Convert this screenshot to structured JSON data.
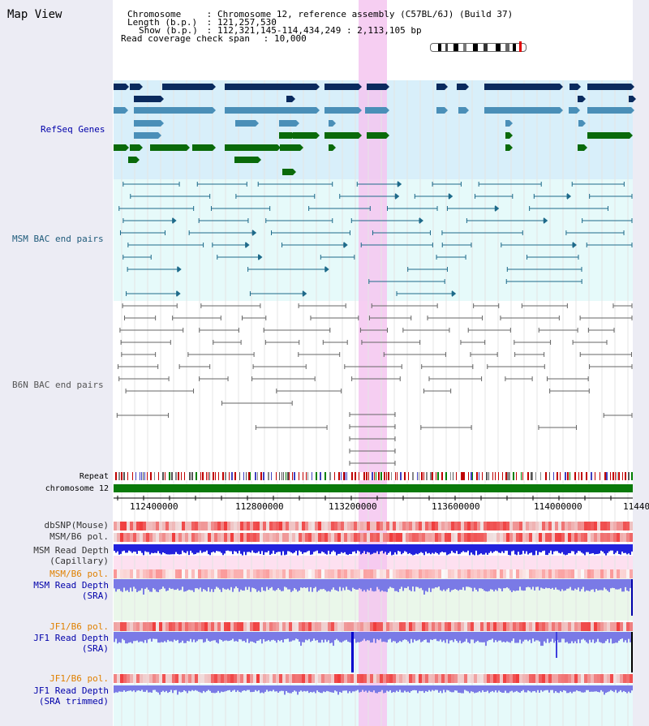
{
  "header": {
    "view_title": "Map View",
    "chromosome_label": "Chromosome",
    "chromosome_value": "Chromosome 12, reference assembly (C57BL/6J) (Build 37)",
    "length_label": "Length (b.p.)",
    "length_value": "121,257,530",
    "show_label": "Show (b.p.)",
    "show_value": "112,321,145-114,434,249 : 2,113,105 bp",
    "coverage_label": "Read coverage check span",
    "coverage_value": "10,000",
    "sep": " : "
  },
  "tracks": {
    "refseq": {
      "label": "RefSeq Genes",
      "color": "#0000aa"
    },
    "msm_bac": {
      "label": "MSM BAC end pairs",
      "color": "#1e5a7a"
    },
    "b6n_bac": {
      "label": "B6N BAC end pairs",
      "color": "#555555"
    },
    "repeat": {
      "label": "Repeat"
    },
    "chromosome": {
      "label": "chromosome 12"
    },
    "dbsnp": {
      "label": "dbSNP(Mouse)"
    },
    "msm_b6_pol_1": {
      "label": "MSM/B6 pol."
    },
    "msm_depth_cap": {
      "label": "MSM Read Depth",
      "label2": "(Capillary)"
    },
    "msm_b6_pol_2": {
      "label": "MSM/B6 pol.",
      "color": "#e08000"
    },
    "msm_depth_sra": {
      "label": "MSM Read Depth",
      "label2": "(SRA)",
      "color": "#0000aa"
    },
    "jf1_b6_pol_1": {
      "label": "JF1/B6 pol.",
      "color": "#e08000"
    },
    "jf1_depth_sra": {
      "label": "JF1 Read Depth",
      "label2": "(SRA)",
      "color": "#0000aa"
    },
    "jf1_b6_pol_2": {
      "label": "JF1/B6 pol.",
      "color": "#e08000"
    },
    "jf1_depth_trim": {
      "label": "JF1 Read Depth",
      "label2": "(SRA trimmed)",
      "color": "#0000aa"
    }
  },
  "axis": {
    "ticks": [
      "112400000",
      "112800000",
      "113200000",
      "113600000",
      "114000000",
      "11440"
    ]
  },
  "colors": {
    "highlight": "#f5c6f0",
    "refseq_dark": "#0a2a5e",
    "refseq_mid": "#4a8fb8",
    "refseq_green": "#0a6a0a",
    "msm_bg": "#e6fafa",
    "refseq_bg": "#d8effa",
    "chromosome_bar": "#0a7a0a",
    "depth_blue": "#2222dd",
    "depth_light": "#7a7ae6"
  }
}
